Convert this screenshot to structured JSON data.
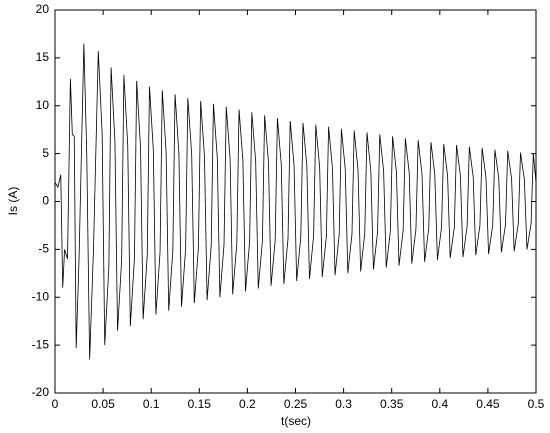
{
  "chart_data": {
    "type": "line",
    "xlabel": "t(sec)",
    "ylabel": "Is (A)",
    "color": "#000000",
    "xlim": [
      0,
      0.5
    ],
    "ylim": [
      -20,
      20
    ],
    "xticks": [
      0,
      0.05,
      0.1,
      0.15,
      0.2,
      0.25,
      0.3,
      0.35,
      0.4,
      0.45,
      0.5
    ],
    "yticks": [
      -20,
      -15,
      -10,
      -5,
      0,
      5,
      10,
      15,
      20
    ],
    "x": [
      0,
      0.003,
      0.006,
      0.008,
      0.01,
      0.013,
      0.016,
      0.018,
      0.02,
      0.022,
      0.025,
      0.03,
      0.033,
      0.036,
      0.04,
      0.045,
      0.049,
      0.0517,
      0.056,
      0.0583,
      0.0623,
      0.065,
      0.0693,
      0.0716,
      0.0756,
      0.0783,
      0.0826,
      0.0849,
      0.0889,
      0.0916,
      0.0959,
      0.0982,
      0.1022,
      0.1049,
      0.1092,
      0.1115,
      0.1155,
      0.1182,
      0.1225,
      0.1248,
      0.1288,
      0.1315,
      0.1358,
      0.1381,
      0.1421,
      0.1448,
      0.1491,
      0.1514,
      0.1554,
      0.1581,
      0.1624,
      0.1647,
      0.1687,
      0.1714,
      0.1757,
      0.178,
      0.182,
      0.1847,
      0.189,
      0.1913,
      0.1953,
      0.198,
      0.2023,
      0.2046,
      0.2086,
      0.2113,
      0.2156,
      0.2179,
      0.2219,
      0.2246,
      0.2289,
      0.2312,
      0.2352,
      0.2379,
      0.2422,
      0.2445,
      0.2485,
      0.2512,
      0.2555,
      0.2578,
      0.2618,
      0.2645,
      0.2688,
      0.2711,
      0.2751,
      0.2778,
      0.2821,
      0.2844,
      0.2884,
      0.2911,
      0.2954,
      0.2977,
      0.3017,
      0.3044,
      0.3087,
      0.311,
      0.315,
      0.3177,
      0.322,
      0.3243,
      0.3283,
      0.331,
      0.3353,
      0.3376,
      0.3416,
      0.3443,
      0.3486,
      0.3509,
      0.3549,
      0.3576,
      0.3619,
      0.3642,
      0.3682,
      0.3709,
      0.3752,
      0.3775,
      0.3815,
      0.3842,
      0.3885,
      0.3908,
      0.3948,
      0.3975,
      0.4018,
      0.4041,
      0.4081,
      0.4108,
      0.4151,
      0.4174,
      0.4214,
      0.4241,
      0.4284,
      0.4307,
      0.4347,
      0.4374,
      0.4417,
      0.444,
      0.448,
      0.4507,
      0.455,
      0.4573,
      0.4613,
      0.464,
      0.4683,
      0.4706,
      0.4746,
      0.4773,
      0.4816,
      0.4839,
      0.4879,
      0.4906,
      0.4949,
      0.4972,
      0.5
    ],
    "values": [
      2,
      1.5,
      2.8,
      -9,
      -5,
      -6,
      12.8,
      7,
      6.8,
      -15.3,
      -6,
      16.5,
      5,
      -16.5,
      -5,
      15.7,
      7.1,
      -15,
      -6.8,
      14,
      6.3,
      -13.5,
      -6.1,
      13.2,
      5.9,
      -13,
      -5.9,
      12.6,
      5.7,
      -12.3,
      -5.6,
      12,
      5.4,
      -11.8,
      -5.3,
      11.6,
      5.2,
      -11.4,
      -5.1,
      11.2,
      5,
      -11,
      -4.9,
      10.8,
      4.9,
      -10.6,
      -4.8,
      10.5,
      4.7,
      -10.3,
      -4.6,
      10.2,
      4.6,
      -10,
      -4.5,
      9.9,
      4.5,
      -9.7,
      -4.4,
      9.6,
      4.3,
      -9.4,
      -4.2,
      9.3,
      4.2,
      -9.1,
      -4.1,
      9,
      4.1,
      -8.8,
      -4,
      8.7,
      3.9,
      -8.6,
      -3.9,
      8.4,
      3.8,
      -8.3,
      -3.7,
      8.2,
      3.7,
      -8.1,
      -3.6,
      8,
      3.6,
      -7.9,
      -3.6,
      7.8,
      3.5,
      -7.7,
      -3.5,
      7.6,
      3.4,
      -7.5,
      -3.4,
      7.4,
      3.3,
      -7.3,
      -3.3,
      7.2,
      3.2,
      -7.1,
      -3.2,
      7,
      3.2,
      -6.9,
      -3.1,
      6.8,
      3.1,
      -6.7,
      -3,
      6.6,
      3,
      -6.5,
      -2.9,
      6.4,
      2.9,
      -6.3,
      -2.8,
      6.2,
      2.8,
      -6.1,
      -2.7,
      6,
      2.7,
      -5.9,
      -2.7,
      5.9,
      2.7,
      -5.8,
      -2.6,
      5.7,
      2.6,
      -5.6,
      -2.5,
      5.6,
      2.5,
      -5.5,
      -2.5,
      5.4,
      2.4,
      -5.3,
      -2.4,
      5.3,
      2.4,
      -5.2,
      -2.3,
      5.1,
      2.3,
      -5,
      -2.3,
      5,
      2
    ]
  }
}
